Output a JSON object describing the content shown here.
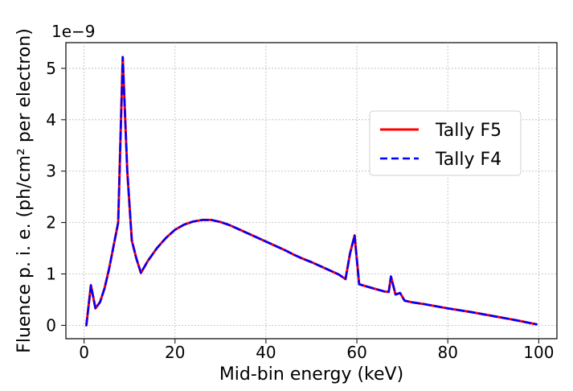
{
  "chart_data": {
    "type": "line",
    "title": "",
    "xlabel": "Mid-bin energy (keV)",
    "ylabel": "Fluence p. i. e. (ph/cm² per electron)",
    "y_offset_label": "1e−9",
    "xlim": [
      -4,
      104
    ],
    "ylim": [
      -0.26,
      5.5
    ],
    "x_ticks": [
      0,
      20,
      40,
      60,
      80,
      100
    ],
    "x_tick_labels": [
      "0",
      "20",
      "40",
      "60",
      "80",
      "100"
    ],
    "y_ticks": [
      0,
      1,
      2,
      3,
      4,
      5
    ],
    "y_tick_labels": [
      "0",
      "1",
      "2",
      "3",
      "4",
      "5"
    ],
    "grid": true,
    "legend_position": "center-right",
    "series": [
      {
        "name": "Tally F5",
        "color": "#ff0000",
        "style": "solid",
        "points": [
          [
            0.5,
            0.0
          ],
          [
            1.5,
            0.78
          ],
          [
            2.5,
            0.33
          ],
          [
            3.5,
            0.45
          ],
          [
            4.5,
            0.72
          ],
          [
            5.5,
            1.1
          ],
          [
            6.5,
            1.55
          ],
          [
            7.5,
            2.0
          ],
          [
            8.5,
            5.22
          ],
          [
            9.5,
            3.0
          ],
          [
            10.5,
            1.65
          ],
          [
            11.5,
            1.3
          ],
          [
            12.5,
            1.02
          ],
          [
            14,
            1.25
          ],
          [
            16,
            1.5
          ],
          [
            18,
            1.7
          ],
          [
            20,
            1.86
          ],
          [
            22,
            1.96
          ],
          [
            24,
            2.02
          ],
          [
            26,
            2.05
          ],
          [
            28,
            2.05
          ],
          [
            30,
            2.01
          ],
          [
            32,
            1.95
          ],
          [
            34,
            1.87
          ],
          [
            36,
            1.79
          ],
          [
            38,
            1.71
          ],
          [
            40,
            1.63
          ],
          [
            42,
            1.55
          ],
          [
            44,
            1.47
          ],
          [
            46,
            1.38
          ],
          [
            48,
            1.3
          ],
          [
            50,
            1.23
          ],
          [
            52,
            1.15
          ],
          [
            54,
            1.07
          ],
          [
            56,
            0.99
          ],
          [
            57.5,
            0.9
          ],
          [
            58.5,
            1.4
          ],
          [
            59.5,
            1.75
          ],
          [
            60.5,
            0.8
          ],
          [
            62,
            0.76
          ],
          [
            64,
            0.71
          ],
          [
            66,
            0.66
          ],
          [
            67,
            0.65
          ],
          [
            67.5,
            0.95
          ],
          [
            68.5,
            0.6
          ],
          [
            69.5,
            0.63
          ],
          [
            70.5,
            0.48
          ],
          [
            72,
            0.45
          ],
          [
            75,
            0.41
          ],
          [
            80,
            0.33
          ],
          [
            85,
            0.26
          ],
          [
            90,
            0.18
          ],
          [
            95,
            0.1
          ],
          [
            99.5,
            0.02
          ]
        ]
      },
      {
        "name": "Tally F4",
        "color": "#0000ff",
        "style": "dashed",
        "points": [
          [
            0.5,
            0.0
          ],
          [
            1.5,
            0.78
          ],
          [
            2.5,
            0.33
          ],
          [
            3.5,
            0.45
          ],
          [
            4.5,
            0.72
          ],
          [
            5.5,
            1.1
          ],
          [
            6.5,
            1.55
          ],
          [
            7.5,
            2.0
          ],
          [
            8.5,
            5.22
          ],
          [
            9.5,
            3.0
          ],
          [
            10.5,
            1.65
          ],
          [
            11.5,
            1.3
          ],
          [
            12.5,
            1.02
          ],
          [
            14,
            1.25
          ],
          [
            16,
            1.5
          ],
          [
            18,
            1.7
          ],
          [
            20,
            1.86
          ],
          [
            22,
            1.96
          ],
          [
            24,
            2.02
          ],
          [
            26,
            2.05
          ],
          [
            28,
            2.05
          ],
          [
            30,
            2.01
          ],
          [
            32,
            1.95
          ],
          [
            34,
            1.87
          ],
          [
            36,
            1.79
          ],
          [
            38,
            1.71
          ],
          [
            40,
            1.63
          ],
          [
            42,
            1.55
          ],
          [
            44,
            1.47
          ],
          [
            46,
            1.38
          ],
          [
            48,
            1.3
          ],
          [
            50,
            1.23
          ],
          [
            52,
            1.15
          ],
          [
            54,
            1.07
          ],
          [
            56,
            0.99
          ],
          [
            57.5,
            0.9
          ],
          [
            58.5,
            1.4
          ],
          [
            59.5,
            1.75
          ],
          [
            60.5,
            0.8
          ],
          [
            62,
            0.76
          ],
          [
            64,
            0.71
          ],
          [
            66,
            0.66
          ],
          [
            67,
            0.65
          ],
          [
            67.5,
            0.95
          ],
          [
            68.5,
            0.6
          ],
          [
            69.5,
            0.63
          ],
          [
            70.5,
            0.48
          ],
          [
            72,
            0.45
          ],
          [
            75,
            0.41
          ],
          [
            80,
            0.33
          ],
          [
            85,
            0.26
          ],
          [
            90,
            0.18
          ],
          [
            95,
            0.1
          ],
          [
            99.5,
            0.02
          ]
        ]
      }
    ]
  }
}
